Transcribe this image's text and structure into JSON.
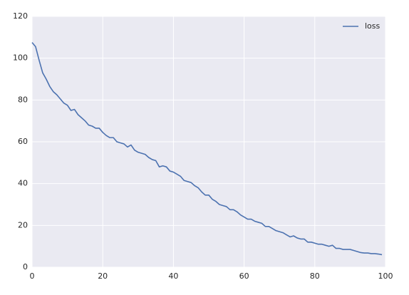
{
  "chart_data": {
    "type": "line",
    "x": [
      0,
      1,
      2,
      3,
      4,
      5,
      6,
      7,
      8,
      9,
      10,
      11,
      12,
      13,
      14,
      15,
      16,
      17,
      18,
      19,
      20,
      21,
      22,
      23,
      24,
      25,
      26,
      27,
      28,
      29,
      30,
      31,
      32,
      33,
      34,
      35,
      36,
      37,
      38,
      39,
      40,
      41,
      42,
      43,
      44,
      45,
      46,
      47,
      48,
      49,
      50,
      51,
      52,
      53,
      54,
      55,
      56,
      57,
      58,
      59,
      60,
      61,
      62,
      63,
      64,
      65,
      66,
      67,
      68,
      69,
      70,
      71,
      72,
      73,
      74,
      75,
      76,
      77,
      78,
      79,
      80,
      81,
      82,
      83,
      84,
      85,
      86,
      87,
      88,
      89,
      90,
      91,
      92,
      93,
      94,
      95,
      96,
      97,
      98,
      99
    ],
    "series": [
      {
        "name": "loss",
        "color": "#4c72b0",
        "values": [
          107.5,
          105.5,
          99,
          93,
          90,
          86.5,
          84,
          82.5,
          80.5,
          78.5,
          77.5,
          75,
          75.5,
          73,
          71.5,
          70,
          68,
          67.5,
          66.5,
          66.5,
          64.5,
          63,
          62,
          62,
          60,
          59.5,
          59,
          57.5,
          58.5,
          56,
          55,
          54.5,
          54,
          52.5,
          51.5,
          51,
          48,
          48.5,
          48,
          46,
          45.5,
          44.5,
          43.5,
          41.5,
          41,
          40.5,
          39,
          38,
          36,
          34.5,
          34.5,
          32.5,
          31.5,
          30,
          29.5,
          29,
          27.5,
          27.5,
          26.5,
          25,
          24,
          23,
          23,
          22,
          21.5,
          21,
          19.5,
          19.5,
          18.5,
          17.5,
          17,
          16.5,
          15.5,
          14.5,
          15,
          14,
          13.5,
          13.5,
          12,
          12,
          11.5,
          11,
          11,
          10.5,
          10,
          10.5,
          9,
          9,
          8.5,
          8.5,
          8.5,
          8,
          7.5,
          7,
          6.8,
          6.8,
          6.5,
          6.5,
          6.3,
          6
        ]
      }
    ],
    "xlim": [
      0,
      100
    ],
    "xticks": [
      0,
      20,
      40,
      60,
      80,
      100
    ],
    "ylim": [
      0,
      120
    ],
    "yticks": [
      0,
      20,
      40,
      60,
      80,
      100,
      120
    ],
    "grid": true,
    "legend": "upper right"
  }
}
